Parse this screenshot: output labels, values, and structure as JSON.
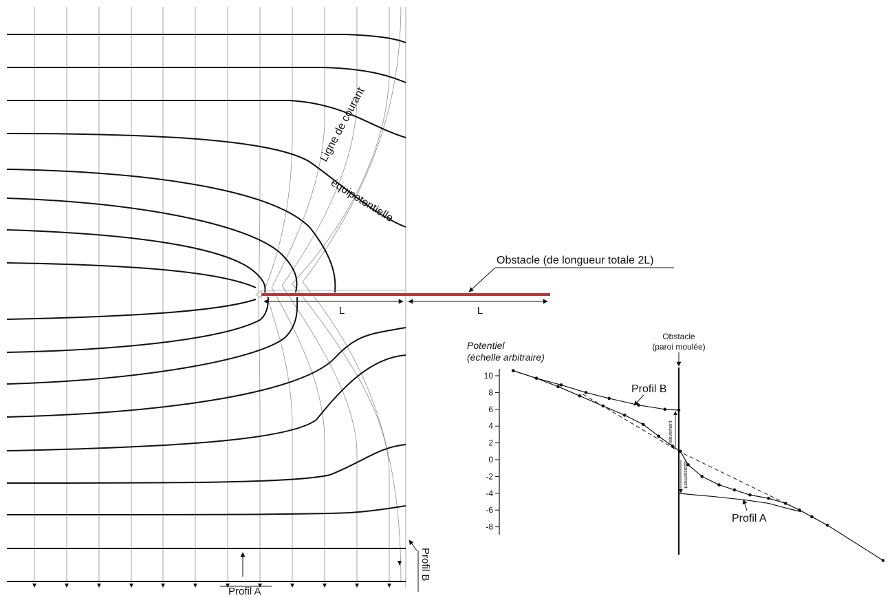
{
  "labels": {
    "streamline": "Ligne de courant",
    "equipotential": "équipotentielle",
    "obstacle": "Obstacle (de longueur totale 2L)",
    "length_left": "L",
    "length_right": "L",
    "profile_a_bottom": "Profil A",
    "profile_b_side": "Profil B"
  },
  "chart": {
    "ylabel_line1": "Potentiel",
    "ylabel_line2": "(échelle arbitraire)",
    "obstacle_line1": "Obstacle",
    "obstacle_line2": "(paroi moulée)",
    "profile_b": "Profil B",
    "profile_a": "Profil A",
    "rise_label": "relèvement",
    "drop_label": "abaissement"
  },
  "colors": {
    "obstacle": "#b03a3a",
    "ink": "#111111",
    "grid": "#8a8f96"
  },
  "chart_data": {
    "type": "line",
    "yticks": [
      10,
      8,
      6,
      4,
      2,
      0,
      -2,
      -4,
      -6,
      -8
    ],
    "ylim": [
      -8,
      10
    ],
    "wall_x": 0,
    "xlim": [
      -11,
      13
    ],
    "series": [
      {
        "name": "Profil B",
        "style": "solid",
        "marker": "dot",
        "points": [
          [
            -10.7,
            10.6
          ],
          [
            -9.2,
            9.7
          ],
          [
            -7.6,
            8.9
          ],
          [
            -6.0,
            8.0
          ],
          [
            -4.5,
            7.3
          ],
          [
            -2.6,
            6.5
          ],
          [
            -0.9,
            6.0
          ],
          [
            0,
            5.9
          ]
        ]
      },
      {
        "name": "Profil A",
        "style": "solid",
        "marker": "dot",
        "points": [
          [
            -10.7,
            10.6
          ],
          [
            -9.2,
            9.7
          ],
          [
            -7.8,
            8.7
          ],
          [
            -6.4,
            7.6
          ],
          [
            -4.9,
            6.4
          ],
          [
            -3.5,
            5.3
          ],
          [
            -2.3,
            4.2
          ],
          [
            -1.3,
            2.8
          ],
          [
            -0.4,
            1.6
          ],
          [
            0.1,
            1.0
          ],
          [
            0.6,
            -0.6
          ],
          [
            1.5,
            -2.0
          ],
          [
            2.6,
            -3.0
          ],
          [
            3.6,
            -3.6
          ],
          [
            4.6,
            -4.2
          ],
          [
            5.8,
            -4.6
          ],
          [
            6.9,
            -5.2
          ],
          [
            7.8,
            -6.0
          ],
          [
            8.6,
            -6.8
          ],
          [
            9.6,
            -7.8
          ],
          [
            13.2,
            -12.0
          ]
        ]
      },
      {
        "name": "",
        "style": "solid",
        "marker": "",
        "points": [
          [
            0,
            -4.0
          ],
          [
            0.5,
            -4.1
          ],
          [
            2.3,
            -4.4
          ],
          [
            4.3,
            -4.8
          ],
          [
            5.8,
            -5.2
          ],
          [
            7.0,
            -5.8
          ],
          [
            7.9,
            -6.2
          ]
        ]
      },
      {
        "name": "",
        "style": "dashed",
        "marker": "",
        "points": [
          [
            -6.2,
            7.8
          ],
          [
            0,
            1.0
          ],
          [
            7.8,
            -6.0
          ]
        ]
      }
    ]
  }
}
